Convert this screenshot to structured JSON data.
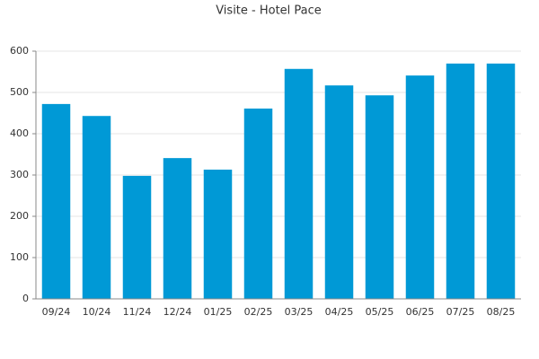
{
  "chart_data": {
    "type": "bar",
    "title": "Visite - Hotel Pace",
    "categories": [
      "09/24",
      "10/24",
      "11/24",
      "12/24",
      "01/25",
      "02/25",
      "03/25",
      "04/25",
      "05/25",
      "06/25",
      "07/25",
      "08/25"
    ],
    "values": [
      472,
      443,
      298,
      341,
      313,
      461,
      557,
      517,
      493,
      541,
      570,
      570
    ],
    "color": "#0099d6",
    "ylim": [
      0,
      600
    ],
    "yticks": [
      0,
      100,
      200,
      300,
      400,
      500,
      600
    ],
    "grid": true
  }
}
